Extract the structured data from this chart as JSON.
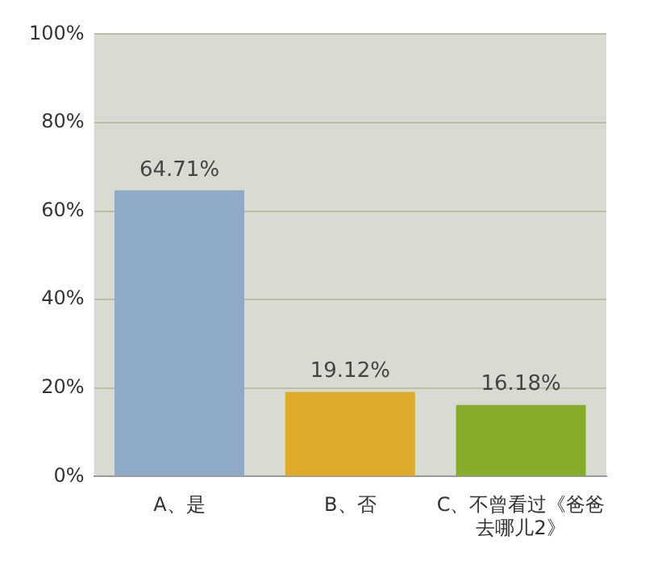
{
  "chart_data": {
    "type": "bar",
    "categories": [
      "A、是",
      "B、否",
      "C、不曾看过《爸爸去哪儿2》"
    ],
    "values": [
      64.71,
      19.12,
      16.18
    ],
    "colors": [
      "#8fa9c9",
      "#e0aa2a",
      "#86ad2a"
    ],
    "value_labels": [
      "64.71%",
      "19.12%",
      "16.18%"
    ],
    "ylim": [
      0,
      100
    ],
    "yticks": [
      {
        "value": 0,
        "label": "0%"
      },
      {
        "value": 20,
        "label": "20%"
      },
      {
        "value": 40,
        "label": "40%"
      },
      {
        "value": 60,
        "label": "60%"
      },
      {
        "value": 80,
        "label": "80%"
      },
      {
        "value": 100,
        "label": "100%"
      }
    ],
    "grid": "y"
  }
}
